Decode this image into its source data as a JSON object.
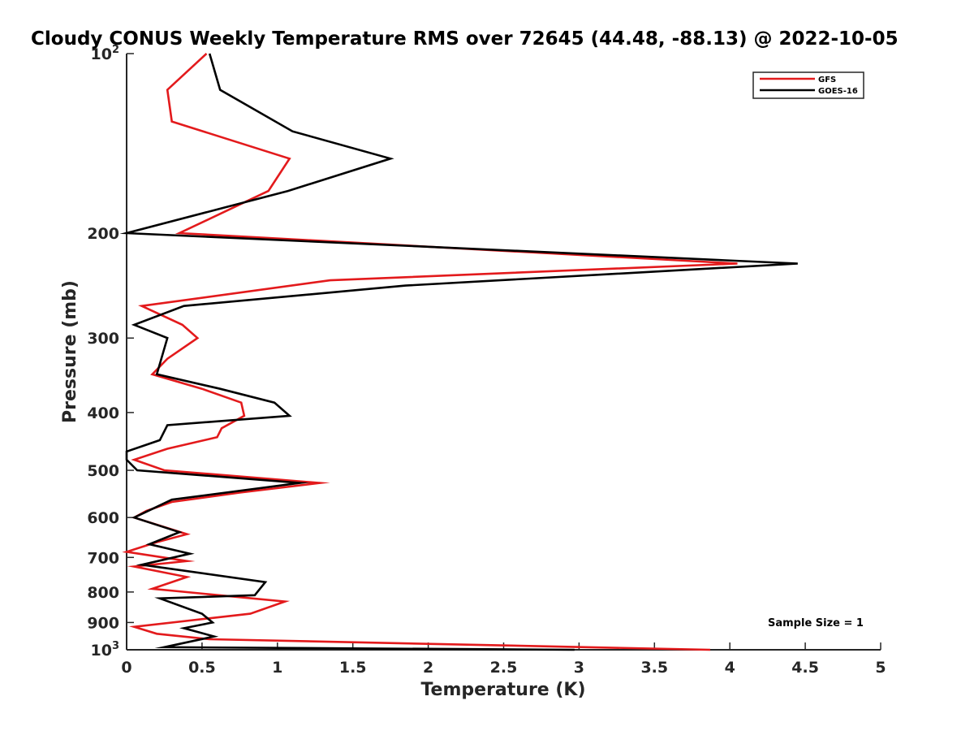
{
  "chart_data": {
    "type": "line",
    "title": "Cloudy CONUS Weekly Temperature RMS over 72645 (44.48, -88.13) @ 2022-10-05",
    "xlabel": "Temperature (K)",
    "ylabel": "Pressure (mb)",
    "xlim": [
      0,
      5
    ],
    "ylim": [
      100,
      1000
    ],
    "y_scale": "log",
    "y_reversed": true,
    "grid": false,
    "legend_position": "top-right",
    "x_ticks": [
      "0",
      "0.5",
      "1",
      "1.5",
      "2",
      "2.5",
      "3",
      "3.5",
      "4",
      "4.5",
      "5"
    ],
    "y_ticks": [
      {
        "value": 100,
        "base": "10",
        "exp": "2"
      },
      {
        "value": 200,
        "label": "200"
      },
      {
        "value": 300,
        "label": "300"
      },
      {
        "value": 400,
        "label": "400"
      },
      {
        "value": 500,
        "label": "500"
      },
      {
        "value": 600,
        "label": "600"
      },
      {
        "value": 700,
        "label": "700"
      },
      {
        "value": 800,
        "label": "800"
      },
      {
        "value": 900,
        "label": "900"
      },
      {
        "value": 1000,
        "base": "10",
        "exp": "3"
      }
    ],
    "annotation": "Sample Size = 1",
    "series": [
      {
        "name": "GFS",
        "color": "#e31a1c",
        "points": [
          {
            "x": 0.53,
            "y": 100
          },
          {
            "x": 0.27,
            "y": 115
          },
          {
            "x": 0.3,
            "y": 130
          },
          {
            "x": 1.08,
            "y": 150
          },
          {
            "x": 0.94,
            "y": 170
          },
          {
            "x": 0.35,
            "y": 200
          },
          {
            "x": 4.05,
            "y": 225
          },
          {
            "x": 1.35,
            "y": 240
          },
          {
            "x": 0.1,
            "y": 265
          },
          {
            "x": 0.37,
            "y": 285
          },
          {
            "x": 0.47,
            "y": 300
          },
          {
            "x": 0.27,
            "y": 325
          },
          {
            "x": 0.17,
            "y": 345
          },
          {
            "x": 0.5,
            "y": 365
          },
          {
            "x": 0.76,
            "y": 385
          },
          {
            "x": 0.78,
            "y": 405
          },
          {
            "x": 0.63,
            "y": 425
          },
          {
            "x": 0.6,
            "y": 440
          },
          {
            "x": 0.27,
            "y": 460
          },
          {
            "x": 0.05,
            "y": 480
          },
          {
            "x": 0.25,
            "y": 500
          },
          {
            "x": 1.28,
            "y": 525
          },
          {
            "x": 0.75,
            "y": 545
          },
          {
            "x": 0.3,
            "y": 565
          },
          {
            "x": 0.13,
            "y": 585
          },
          {
            "x": 0.05,
            "y": 600
          },
          {
            "x": 0.4,
            "y": 640
          },
          {
            "x": 0.2,
            "y": 660
          },
          {
            "x": 0.0,
            "y": 685
          },
          {
            "x": 0.4,
            "y": 710
          },
          {
            "x": 0.05,
            "y": 725
          },
          {
            "x": 0.4,
            "y": 755
          },
          {
            "x": 0.17,
            "y": 790
          },
          {
            "x": 1.05,
            "y": 830
          },
          {
            "x": 0.82,
            "y": 870
          },
          {
            "x": 0.05,
            "y": 915
          },
          {
            "x": 0.2,
            "y": 940
          },
          {
            "x": 0.55,
            "y": 960
          },
          {
            "x": 3.87,
            "y": 1000
          }
        ]
      },
      {
        "name": "GOES-16",
        "color": "#000000",
        "points": [
          {
            "x": 0.55,
            "y": 100
          },
          {
            "x": 0.62,
            "y": 115
          },
          {
            "x": 1.1,
            "y": 135
          },
          {
            "x": 1.75,
            "y": 150
          },
          {
            "x": 1.07,
            "y": 170
          },
          {
            "x": 0.0,
            "y": 200
          },
          {
            "x": 4.45,
            "y": 225
          },
          {
            "x": 1.85,
            "y": 245
          },
          {
            "x": 0.38,
            "y": 265
          },
          {
            "x": 0.05,
            "y": 285
          },
          {
            "x": 0.27,
            "y": 300
          },
          {
            "x": 0.2,
            "y": 345
          },
          {
            "x": 0.62,
            "y": 365
          },
          {
            "x": 0.98,
            "y": 385
          },
          {
            "x": 1.08,
            "y": 405
          },
          {
            "x": 0.27,
            "y": 420
          },
          {
            "x": 0.22,
            "y": 445
          },
          {
            "x": 0.0,
            "y": 465
          },
          {
            "x": 0.0,
            "y": 480
          },
          {
            "x": 0.07,
            "y": 500
          },
          {
            "x": 1.15,
            "y": 525
          },
          {
            "x": 0.3,
            "y": 560
          },
          {
            "x": 0.05,
            "y": 600
          },
          {
            "x": 0.35,
            "y": 635
          },
          {
            "x": 0.15,
            "y": 665
          },
          {
            "x": 0.42,
            "y": 690
          },
          {
            "x": 0.1,
            "y": 720
          },
          {
            "x": 0.92,
            "y": 770
          },
          {
            "x": 0.85,
            "y": 810
          },
          {
            "x": 0.22,
            "y": 820
          },
          {
            "x": 0.5,
            "y": 870
          },
          {
            "x": 0.57,
            "y": 900
          },
          {
            "x": 0.38,
            "y": 920
          },
          {
            "x": 0.58,
            "y": 950
          },
          {
            "x": 0.25,
            "y": 990
          },
          {
            "x": 2.97,
            "y": 1000
          }
        ]
      }
    ]
  }
}
